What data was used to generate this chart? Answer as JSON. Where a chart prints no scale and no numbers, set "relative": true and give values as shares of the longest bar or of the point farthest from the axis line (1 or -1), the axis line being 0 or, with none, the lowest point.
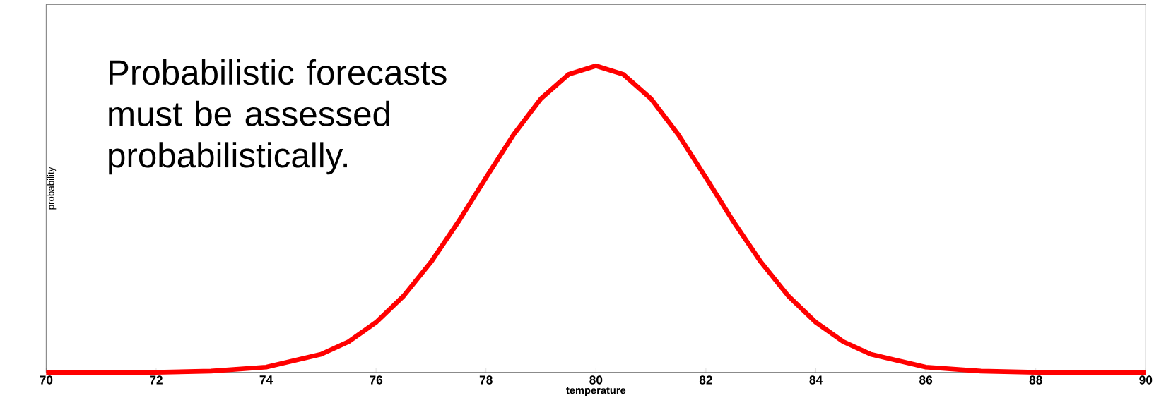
{
  "chart_data": {
    "type": "line",
    "relative": true,
    "xlabel": "temperature",
    "ylabel": "probability",
    "x": [
      70,
      71,
      72,
      73,
      74,
      75,
      75.5,
      76,
      76.5,
      77,
      77.5,
      78,
      78.5,
      79,
      79.5,
      80,
      80.5,
      81,
      81.5,
      82,
      82.5,
      83,
      83.5,
      84,
      84.5,
      85,
      86,
      87,
      88,
      89,
      90
    ],
    "series": [
      {
        "color": "#ff0000",
        "values": [
          0,
          0,
          0,
          0.004,
          0.017,
          0.059,
          0.1,
          0.163,
          0.249,
          0.36,
          0.492,
          0.635,
          0.775,
          0.893,
          0.972,
          1,
          0.972,
          0.893,
          0.775,
          0.635,
          0.492,
          0.36,
          0.249,
          0.163,
          0.1,
          0.059,
          0.017,
          0.004,
          0,
          0,
          0
        ]
      }
    ],
    "xlim": [
      70,
      90
    ],
    "xticks": [
      70,
      72,
      74,
      76,
      78,
      80,
      82,
      84,
      86,
      88,
      90
    ],
    "tick_labels": "x",
    "annotations": [
      "Probabilistic forecasts must be assessed probabilistically."
    ]
  }
}
